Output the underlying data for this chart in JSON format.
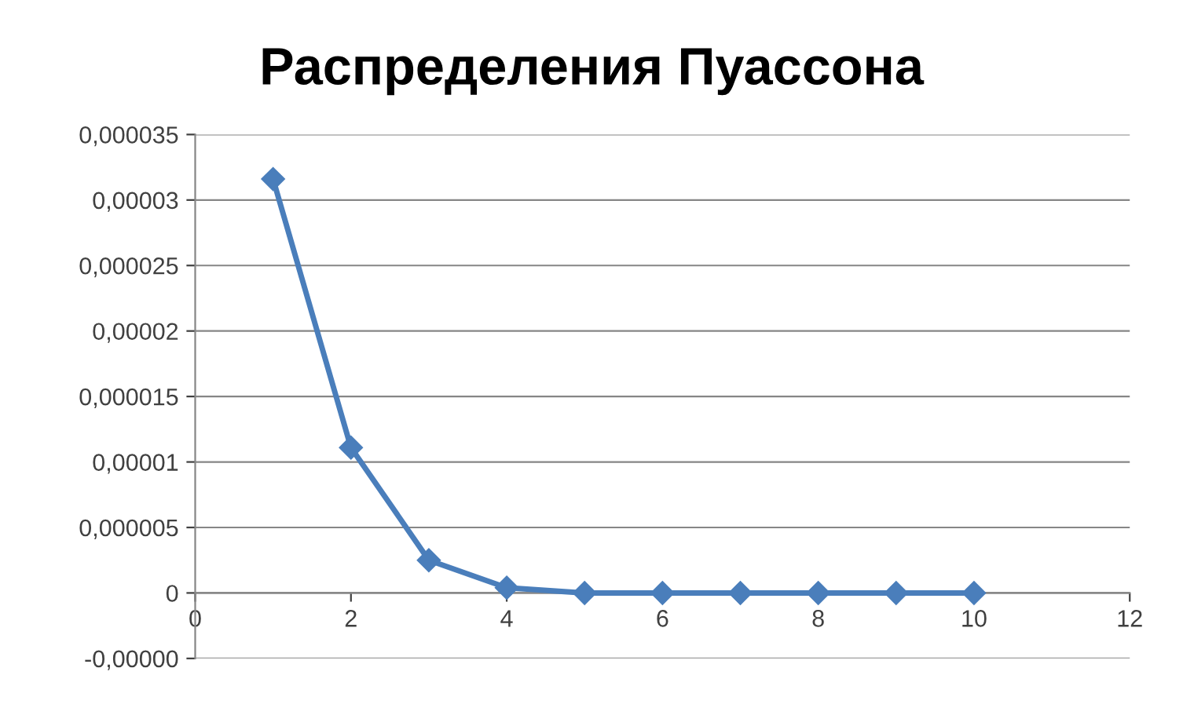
{
  "chart_data": {
    "type": "line",
    "title": "Распределения Пуассона",
    "x": [
      1,
      2,
      3,
      4,
      5,
      6,
      7,
      8,
      9,
      10
    ],
    "series": [
      {
        "color": "#4a7ebb",
        "values": [
          3.16e-05,
          1.11e-05,
          2.5e-06,
          4e-07,
          0,
          0,
          0,
          0,
          0,
          0
        ]
      }
    ],
    "xlim": [
      0,
      12
    ],
    "xticks": [
      0,
      2,
      4,
      6,
      8,
      10,
      12
    ],
    "ylim": [
      -5e-06,
      3.5e-05
    ],
    "yticks": [
      {
        "value": -5e-06,
        "label": "-0,00000"
      },
      {
        "value": 0,
        "label": "0"
      },
      {
        "value": 5e-06,
        "label": "0,000005"
      },
      {
        "value": 1e-05,
        "label": "0,00001"
      },
      {
        "value": 1.5e-05,
        "label": "0,000015"
      },
      {
        "value": 2e-05,
        "label": "0,00002"
      },
      {
        "value": 2.5e-05,
        "label": "0,000025"
      },
      {
        "value": 3e-05,
        "label": "0,00003"
      },
      {
        "value": 3.5e-05,
        "label": "0,000035"
      }
    ],
    "grid": "y",
    "legend": false,
    "marker": "diamond",
    "line_style": "solid"
  }
}
